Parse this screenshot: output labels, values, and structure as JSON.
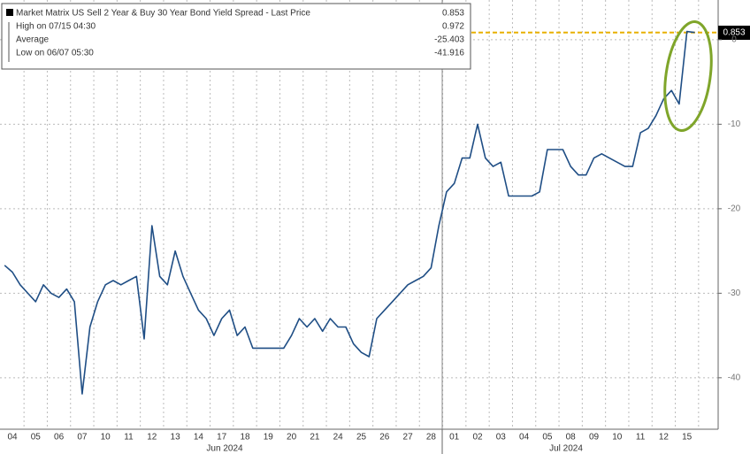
{
  "chart_data": {
    "type": "line",
    "series": [
      {
        "name": "Market Matrix US Sell 2 Year & Buy 30 Year Bond Yield Spread - Last Price",
        "color": "#1f4e85",
        "values": [
          -26.7,
          -27.5,
          -29,
          -30,
          -31,
          -29,
          -30,
          -30.5,
          -29.5,
          -31,
          -41.916,
          -34,
          -31,
          -29,
          -28.5,
          -29,
          -28.5,
          -28,
          -35.4,
          -22,
          -28,
          -29,
          -25,
          -28,
          -30,
          -32,
          -33,
          -35,
          -33,
          -32,
          -35,
          -34,
          -36.5,
          -36.5,
          -36.5,
          -36.5,
          -36.5,
          -35,
          -33,
          -34,
          -33,
          -34.5,
          -33,
          -34,
          -34,
          -36,
          -37,
          -37.5,
          -33,
          -32,
          -31,
          -30,
          -29,
          -28.5,
          -28,
          -27,
          -22,
          -18,
          -17,
          -14,
          -14,
          -10,
          -14,
          -15,
          -14.5,
          -18.5,
          -18.5,
          -18.5,
          -18.5,
          -18,
          -13,
          -13,
          -13,
          -15,
          -16,
          -16,
          -14,
          -13.5,
          -14,
          -14.5,
          -15,
          -15,
          -11,
          -10.5,
          -9,
          -7,
          -6,
          -7.6,
          0.972,
          0.853
        ]
      }
    ],
    "categories": [
      null,
      "04",
      null,
      null,
      "05",
      null,
      null,
      "06",
      null,
      null,
      "07",
      null,
      null,
      "10",
      null,
      null,
      "11",
      null,
      null,
      "12",
      null,
      null,
      "13",
      null,
      null,
      "14",
      null,
      null,
      "17",
      null,
      null,
      "18",
      null,
      null,
      "19",
      null,
      null,
      "20",
      null,
      null,
      "21",
      null,
      null,
      "24",
      null,
      null,
      "25",
      null,
      null,
      "26",
      null,
      null,
      "27",
      null,
      null,
      "28",
      null,
      null,
      "01",
      null,
      null,
      "02",
      null,
      null,
      "03",
      null,
      null,
      "04",
      null,
      null,
      "05",
      null,
      null,
      "08",
      null,
      null,
      "09",
      null,
      null,
      "10",
      null,
      null,
      "11",
      null,
      null,
      "12",
      null,
      null,
      "15",
      null
    ],
    "x_groups": [
      "Jun 2024",
      "Jul 2024"
    ],
    "last_price": 0.853,
    "stats": [
      {
        "label": "High on 07/15 04:30",
        "value": 0.972
      },
      {
        "label": "Average",
        "value": -25.403
      },
      {
        "label": "Low on 06/07 05:30",
        "value": -41.916
      }
    ],
    "ylim": [
      -46.3,
      4.7
    ],
    "yticks": [
      0,
      -10,
      -20,
      -30,
      -40
    ],
    "grid": true
  }
}
